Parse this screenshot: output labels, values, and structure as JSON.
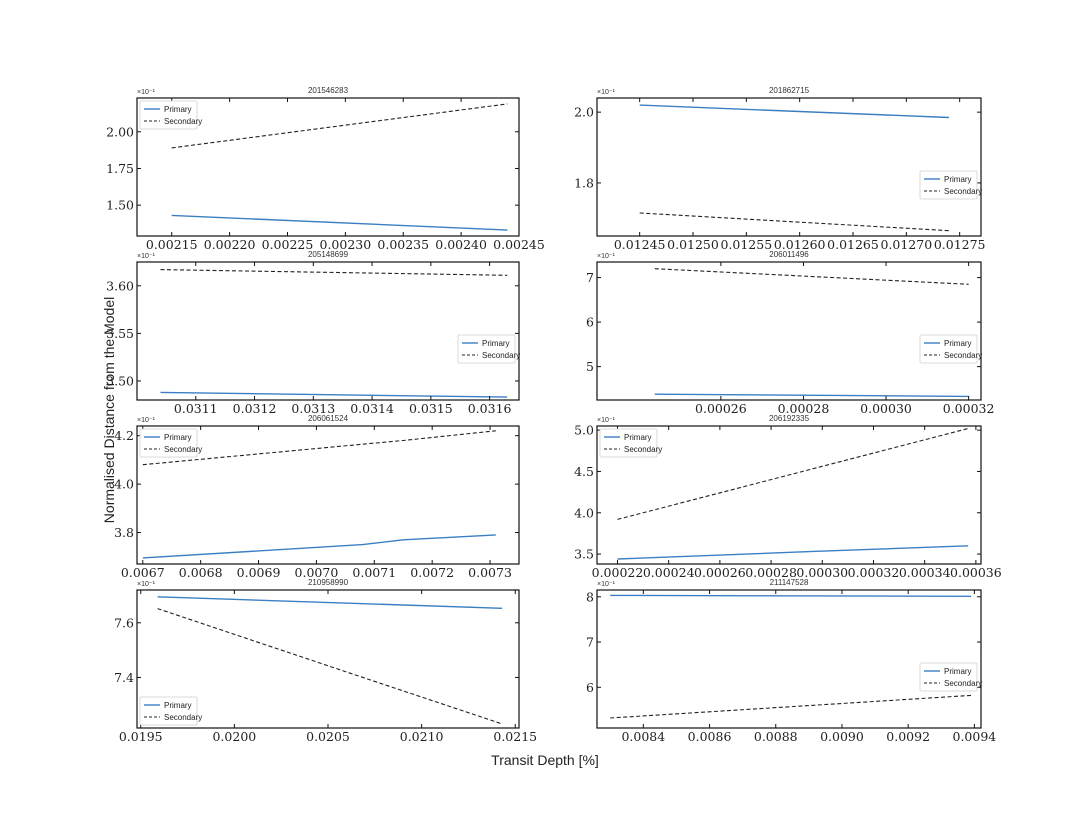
{
  "figure": {
    "xlabel": "Transit Depth [%]",
    "ylabel": "Normalised Distance from the Model"
  },
  "colors": {
    "primary": "#3a7fc1",
    "secondary": "#222222"
  },
  "chart_data": [
    {
      "type": "line",
      "title": "201546283",
      "multiplier": "×10⁻¹",
      "xlim": [
        0.00212,
        0.00245
      ],
      "ylim": [
        1.29,
        2.23
      ],
      "xticks": [
        0.00215,
        0.0022,
        0.00225,
        0.0023,
        0.00235,
        0.0024,
        0.00245
      ],
      "xtick_labels": [
        "0.00215",
        "0.00220",
        "0.00225",
        "0.00230",
        "0.00235",
        "0.00240",
        "0.00245"
      ],
      "yticks": [
        1.5,
        1.75,
        2.0
      ],
      "ytick_labels": [
        "1.50",
        "1.75",
        "2.00"
      ],
      "legend": "top-left",
      "series": [
        {
          "name": "Primary",
          "x": [
            0.00215,
            0.00244
          ],
          "y": [
            1.43,
            1.33
          ]
        },
        {
          "name": "Secondary",
          "x": [
            0.00215,
            0.00244
          ],
          "y": [
            1.89,
            2.19
          ]
        }
      ]
    },
    {
      "type": "line",
      "title": "201862715",
      "multiplier": "×10⁻¹",
      "xlim": [
        0.01241,
        0.01277
      ],
      "ylim": [
        1.65,
        2.04
      ],
      "xticks": [
        0.01245,
        0.0125,
        0.01255,
        0.0126,
        0.01265,
        0.0127,
        0.01275
      ],
      "xtick_labels": [
        "0.01245",
        "0.01250",
        "0.01255",
        "0.01260",
        "0.01265",
        "0.01270",
        "0.01275"
      ],
      "yticks": [
        1.8,
        2.0
      ],
      "ytick_labels": [
        "1.8",
        "2.0"
      ],
      "legend": "center-right",
      "series": [
        {
          "name": "Primary",
          "x": [
            0.01245,
            0.01274
          ],
          "y": [
            2.02,
            1.985
          ]
        },
        {
          "name": "Secondary",
          "x": [
            0.01245,
            0.01274
          ],
          "y": [
            1.715,
            1.665
          ]
        }
      ]
    },
    {
      "type": "line",
      "title": "205148699",
      "multiplier": "×10⁻¹",
      "xlim": [
        0.031,
        0.03165
      ],
      "ylim": [
        3.48,
        3.625
      ],
      "xticks": [
        0.0311,
        0.0312,
        0.0313,
        0.0314,
        0.0315,
        0.0316
      ],
      "xtick_labels": [
        "0.0311",
        "0.0312",
        "0.0313",
        "0.0314",
        "0.0315",
        "0.0316"
      ],
      "yticks": [
        3.5,
        3.55,
        3.6
      ],
      "ytick_labels": [
        "3.50",
        "3.55",
        "3.60"
      ],
      "legend": "center-right",
      "series": [
        {
          "name": "Primary",
          "x": [
            0.03104,
            0.03163
          ],
          "y": [
            3.488,
            3.483
          ]
        },
        {
          "name": "Secondary",
          "x": [
            0.03104,
            0.03163
          ],
          "y": [
            3.617,
            3.611
          ]
        }
      ]
    },
    {
      "type": "line",
      "title": "206011496",
      "multiplier": "×10⁻¹",
      "xlim": [
        0.00023,
        0.000323
      ],
      "ylim": [
        4.25,
        7.35
      ],
      "xticks": [
        0.00026,
        0.00028,
        0.0003,
        0.00032
      ],
      "xtick_labels": [
        "0.00026",
        "0.00028",
        "0.00030",
        "0.00032"
      ],
      "yticks": [
        5,
        6,
        7
      ],
      "ytick_labels": [
        "5",
        "6",
        "7"
      ],
      "legend": "center-right",
      "series": [
        {
          "name": "Primary",
          "x": [
            0.000244,
            0.00032
          ],
          "y": [
            4.38,
            4.33
          ]
        },
        {
          "name": "Secondary",
          "x": [
            0.000244,
            0.00032
          ],
          "y": [
            7.2,
            6.85
          ]
        }
      ]
    },
    {
      "type": "line",
      "title": "206061524",
      "multiplier": "×10⁻¹",
      "xlim": [
        0.00669,
        0.00735
      ],
      "ylim": [
        3.67,
        4.24
      ],
      "xticks": [
        0.0067,
        0.0068,
        0.0069,
        0.007,
        0.0071,
        0.0072,
        0.0073
      ],
      "xtick_labels": [
        "0.0067",
        "0.0068",
        "0.0069",
        "0.0070",
        "0.0071",
        "0.0072",
        "0.0073"
      ],
      "yticks": [
        3.8,
        4.0,
        4.2
      ],
      "ytick_labels": [
        "3.8",
        "4.0",
        "4.2"
      ],
      "legend": "top-left",
      "series": [
        {
          "name": "Primary",
          "x": [
            0.0067,
            0.00708,
            0.00715,
            0.00731
          ],
          "y": [
            3.695,
            3.75,
            3.77,
            3.79
          ]
        },
        {
          "name": "Secondary",
          "x": [
            0.0067,
            0.00708,
            0.00715,
            0.00731
          ],
          "y": [
            4.08,
            4.165,
            4.18,
            4.22
          ]
        }
      ]
    },
    {
      "type": "line",
      "title": "206192335",
      "multiplier": "×10⁻¹",
      "xlim": [
        0.000212,
        0.000362
      ],
      "ylim": [
        3.38,
        5.05
      ],
      "xticks": [
        0.00022,
        0.00024,
        0.00026,
        0.00028,
        0.0003,
        0.00032,
        0.00034,
        0.00036
      ],
      "xtick_labels": [
        "0.00022",
        "0.00024",
        "0.00026",
        "0.00028",
        "0.00030",
        "0.00032",
        "0.00034",
        "0.00036"
      ],
      "yticks": [
        3.5,
        4.0,
        4.5,
        5.0
      ],
      "ytick_labels": [
        "3.5",
        "4.0",
        "4.5",
        "5.0"
      ],
      "legend": "top-left",
      "series": [
        {
          "name": "Primary",
          "x": [
            0.00022,
            0.000295,
            0.000357
          ],
          "y": [
            3.44,
            3.53,
            3.6
          ]
        },
        {
          "name": "Secondary",
          "x": [
            0.00022,
            0.000357
          ],
          "y": [
            3.92,
            5.02
          ]
        }
      ]
    },
    {
      "type": "line",
      "title": "210958990",
      "multiplier": "×10⁻¹",
      "xlim": [
        0.01948,
        0.02152
      ],
      "ylim": [
        7.215,
        7.72
      ],
      "xticks": [
        0.0195,
        0.02,
        0.0205,
        0.021,
        0.0215
      ],
      "xtick_labels": [
        "0.0195",
        "0.0200",
        "0.0205",
        "0.0210",
        "0.0215"
      ],
      "yticks": [
        7.4,
        7.6
      ],
      "ytick_labels": [
        "7.4",
        "7.6"
      ],
      "legend": "bottom-left",
      "series": [
        {
          "name": "Primary",
          "x": [
            0.01959,
            0.02143
          ],
          "y": [
            7.695,
            7.653
          ]
        },
        {
          "name": "Secondary",
          "x": [
            0.01959,
            0.02073,
            0.02143
          ],
          "y": [
            7.652,
            7.39,
            7.23
          ]
        }
      ]
    },
    {
      "type": "line",
      "title": "211147528",
      "multiplier": "×10⁻¹",
      "xlim": [
        0.00826,
        0.00942
      ],
      "ylim": [
        5.1,
        8.15
      ],
      "xticks": [
        0.0084,
        0.0086,
        0.0088,
        0.009,
        0.0092,
        0.0094
      ],
      "xtick_labels": [
        "0.0084",
        "0.0086",
        "0.0088",
        "0.0090",
        "0.0092",
        "0.0094"
      ],
      "yticks": [
        6,
        7,
        8
      ],
      "ytick_labels": [
        "6",
        "7",
        "8"
      ],
      "legend": "center-right",
      "series": [
        {
          "name": "Primary",
          "x": [
            0.0083,
            0.00939
          ],
          "y": [
            8.03,
            8.01
          ]
        },
        {
          "name": "Secondary",
          "x": [
            0.0083,
            0.00939
          ],
          "y": [
            5.32,
            5.82
          ]
        }
      ]
    }
  ]
}
